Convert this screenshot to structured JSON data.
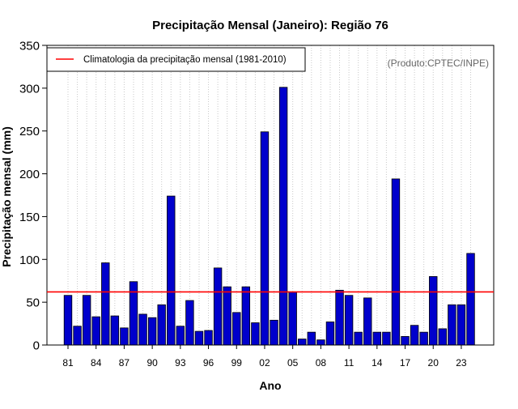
{
  "chart_data": {
    "type": "bar",
    "title": "Precipitação Mensal (Janeiro): Região 76",
    "xlabel": "Ano",
    "ylabel": "Precipitação mensal (mm)",
    "ylim": [
      0,
      350
    ],
    "yticks": [
      0,
      50,
      100,
      150,
      200,
      250,
      300,
      350
    ],
    "grid": "vertical-dotted",
    "categories": [
      "81",
      "82",
      "83",
      "84",
      "85",
      "86",
      "87",
      "88",
      "89",
      "90",
      "91",
      "92",
      "93",
      "94",
      "95",
      "96",
      "97",
      "98",
      "99",
      "00",
      "01",
      "02",
      "03",
      "04",
      "05",
      "06",
      "07",
      "08",
      "09",
      "10",
      "11",
      "12",
      "13",
      "14",
      "15",
      "16",
      "17",
      "18",
      "19",
      "20",
      "21",
      "22",
      "23",
      "24"
    ],
    "xtick_labels": [
      "81",
      "84",
      "87",
      "90",
      "93",
      "96",
      "99",
      "02",
      "05",
      "08",
      "11",
      "14",
      "17",
      "20",
      "23"
    ],
    "series": [
      {
        "values": [
          58,
          22,
          58,
          33,
          96,
          34,
          20,
          74,
          36,
          32,
          47,
          174,
          22,
          52,
          16,
          17,
          90,
          68,
          38,
          68,
          26,
          249,
          29,
          301,
          62,
          7,
          15,
          6,
          27,
          64,
          58,
          15,
          55,
          15,
          15,
          194,
          10,
          23,
          15,
          80,
          19,
          47,
          47,
          107
        ]
      }
    ],
    "reference_line": {
      "label": "Climatologia da precipitação mensal (1981-2010)",
      "value": 62
    },
    "legend_position": "top-left",
    "annotation": "(Produto:CPTEC/INPE)",
    "colors": {
      "bar_fill": "#0000cc",
      "bar_stroke": "#000000",
      "reference_line": "#ff0000",
      "grid": "#c8c8c8",
      "annotation": "#666666"
    }
  }
}
